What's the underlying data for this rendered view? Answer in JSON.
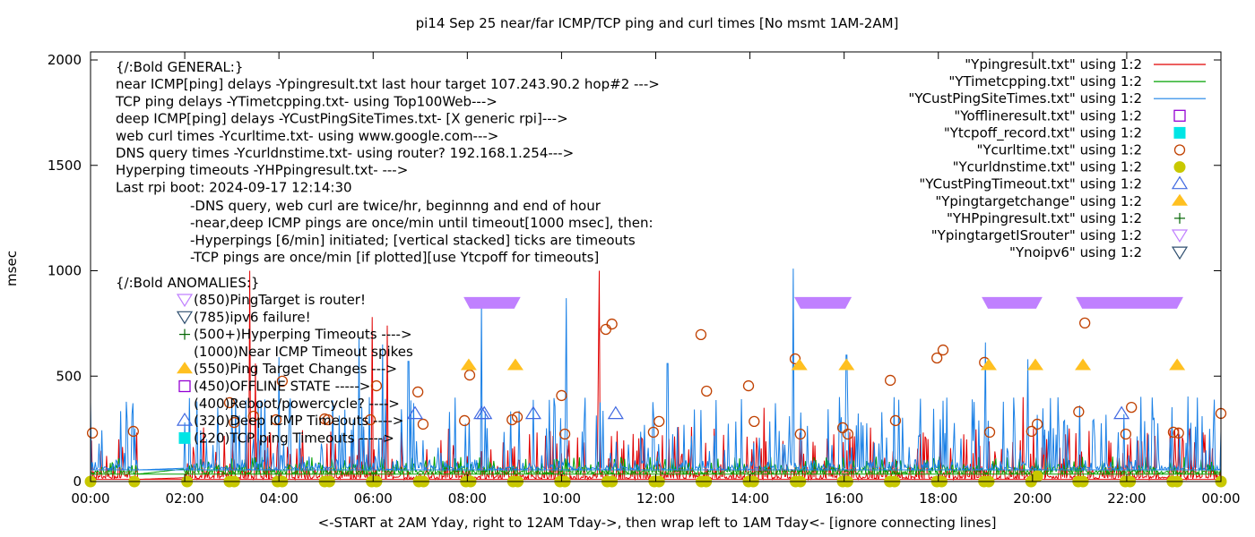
{
  "chart_data": {
    "type": "line",
    "title": "pi14 Sep 25  near/far ICMP/TCP ping and curl times [No msmt 1AM-2AM]",
    "xlabel": "<-START at 2AM Yday, right to 12AM Tday->, then wrap left to 1AM Tday<- [ignore connecting lines]",
    "ylabel": "msec",
    "xlim_hours": [
      0,
      24
    ],
    "ylim": [
      0,
      2000
    ],
    "x_ticks": [
      "00:00",
      "02:00",
      "04:00",
      "06:00",
      "08:00",
      "10:00",
      "12:00",
      "14:00",
      "16:00",
      "18:00",
      "20:00",
      "22:00",
      "00:00"
    ],
    "x_tick_hours": [
      0,
      2,
      4,
      6,
      8,
      10,
      12,
      14,
      16,
      18,
      20,
      22,
      24
    ],
    "y_ticks": [
      0,
      500,
      1000,
      1500,
      2000
    ],
    "grid": false,
    "legend_placement": "top-right",
    "annotations_general": [
      "{/:Bold GENERAL:}",
      "near ICMP[ping] delays -Ypingresult.txt last hour target 107.243.90.2 hop#2 --->",
      "TCP ping delays -YTimetcpping.txt- using Top100Web--->",
      "deep ICMP[ping] delays -YCustPingSiteTimes.txt- [X generic rpi]--->",
      "web curl times -Ycurltime.txt- using www.google.com--->",
      "DNS query times -Ycurldnstime.txt- using router? 192.168.1.254--->",
      "Hyperping timeouts -YHPpingresult.txt- --->",
      "Last rpi boot: 2024-09-17 12:14:30"
    ],
    "annotations_notes": [
      "-DNS query, web curl are twice/hr, beginnng and end of hour",
      "-near,deep ICMP pings are once/min until timeout[1000 msec], then:",
      "  -Hyperpings [6/min] initiated; [vertical stacked] ticks are timeouts",
      "-TCP pings are once/min [if plotted][use Ytcpoff for timeouts]"
    ],
    "anomalies_title": "{/:Bold ANOMALIES:}",
    "anomalies": [
      {
        "marker": "tri-down-violet",
        "text": "(850)PingTarget is router!"
      },
      {
        "marker": "tri-down-slate",
        "text": "(785)ipv6 failure!"
      },
      {
        "marker": "plus-green",
        "text": "(500+)Hyperping Timeouts ---->"
      },
      {
        "marker": "none",
        "text": "(1000)Near ICMP Timeout spikes"
      },
      {
        "marker": "tri-up-filled-orange",
        "text": "(550)Ping Target Changes --->"
      },
      {
        "marker": "square-open-purple",
        "text": "(450)OFFLINE STATE ----->"
      },
      {
        "marker": "none",
        "text": "(400)Reboot/powercycle? ---->"
      },
      {
        "marker": "tri-up-open-blue",
        "text": "(320)Deep ICMP Timeouts ---->"
      },
      {
        "marker": "square-filled-cyan",
        "text": "(220)TCP ping Timeouts ----->"
      }
    ],
    "legend": [
      {
        "label": "\"Ypingresult.txt\" using 1:2",
        "style": "line",
        "color": "#e00000"
      },
      {
        "label": "\"YTimetcpping.txt\" using 1:2",
        "style": "line",
        "color": "#00a000"
      },
      {
        "label": "\"YCustPingSiteTimes.txt\" using 1:2",
        "style": "line",
        "color": "#1a80e6"
      },
      {
        "label": "\"Yofflineresult.txt\" using 1:2",
        "style": "square-open",
        "color": "#9400d3"
      },
      {
        "label": "\"Ytcpoff_record.txt\" using 1:2",
        "style": "square-filled",
        "color": "#00e5e5"
      },
      {
        "label": "\"Ycurltime.txt\" using 1:2",
        "style": "circle-open",
        "color": "#c04000"
      },
      {
        "label": "\"Ycurldnstime.txt\" using 1:2",
        "style": "circle-filled",
        "color": "#c8c800"
      },
      {
        "label": "\"YCustPingTimeout.txt\" using 1:2",
        "style": "tri-up-open",
        "color": "#4169e1"
      },
      {
        "label": "\"Ypingtargetchange\" using 1:2",
        "style": "tri-up-filled",
        "color": "#ffc020"
      },
      {
        "label": "\"YHPpingresult.txt\" using 1:2",
        "style": "plus",
        "color": "#006400"
      },
      {
        "label": "\"YpingtargetISrouter\" using 1:2",
        "style": "tri-down-open",
        "color": "#c080ff"
      },
      {
        "label": "\"Ynoipv6\" using 1:2",
        "style": "tri-down-open",
        "color": "#2f4f6f"
      }
    ],
    "series": [
      {
        "name": "Ypingresult.txt",
        "kind": "noisy-line",
        "color": "#e00000",
        "baseline_msec": 10,
        "gap_hours": [
          1.0,
          2.0
        ],
        "typical_spike_msec": [
          50,
          250
        ],
        "large_spikes": [
          [
            3.38,
            1000
          ],
          [
            3.5,
            560
          ],
          [
            5.98,
            780
          ],
          [
            6.3,
            740
          ],
          [
            10.8,
            1000
          ],
          [
            10.78,
            520
          ],
          [
            14.3,
            350
          ],
          [
            19.8,
            400
          ]
        ]
      },
      {
        "name": "YTimetcpping.txt",
        "kind": "noisy-line",
        "color": "#00a000",
        "baseline_msec": 35,
        "gap_hours": [
          1.0,
          2.0
        ],
        "typical_spike_msec": [
          20,
          110
        ]
      },
      {
        "name": "YCustPingSiteTimes.txt",
        "kind": "noisy-line",
        "color": "#1a80e6",
        "baseline_msec": 55,
        "gap_hours": [
          1.0,
          2.0
        ],
        "typical_spike_msec": [
          60,
          350
        ],
        "large_spikes": [
          [
            4.0,
            590
          ],
          [
            5.7,
            680
          ],
          [
            6.2,
            650
          ],
          [
            6.75,
            570
          ],
          [
            8.3,
            860
          ],
          [
            10.1,
            870
          ],
          [
            12.25,
            560
          ],
          [
            14.92,
            1010
          ],
          [
            16.05,
            600
          ],
          [
            19.0,
            660
          ],
          [
            19.9,
            580
          ]
        ]
      },
      {
        "name": "Ycurltime.txt",
        "kind": "scatter",
        "marker": "circle-open",
        "color": "#c04000",
        "points": [
          [
            0.04,
            230
          ],
          [
            0.91,
            238
          ],
          [
            2.95,
            374
          ],
          [
            3.05,
            280
          ],
          [
            3.46,
            310
          ],
          [
            3.94,
            293
          ],
          [
            4.07,
            476
          ],
          [
            4.97,
            297
          ],
          [
            5.04,
            293
          ],
          [
            5.94,
            293
          ],
          [
            6.07,
            454
          ],
          [
            6.95,
            425
          ],
          [
            7.06,
            272
          ],
          [
            7.94,
            289
          ],
          [
            8.05,
            505
          ],
          [
            8.95,
            293
          ],
          [
            9.06,
            306
          ],
          [
            10.0,
            408
          ],
          [
            10.07,
            225
          ],
          [
            10.94,
            722
          ],
          [
            11.07,
            747
          ],
          [
            11.95,
            234
          ],
          [
            12.07,
            285
          ],
          [
            12.96,
            697
          ],
          [
            13.08,
            429
          ],
          [
            13.97,
            454
          ],
          [
            14.09,
            285
          ],
          [
            14.96,
            582
          ],
          [
            15.07,
            225
          ],
          [
            15.97,
            255
          ],
          [
            16.08,
            225
          ],
          [
            16.98,
            480
          ],
          [
            17.09,
            289
          ],
          [
            17.97,
            586
          ],
          [
            18.1,
            624
          ],
          [
            18.98,
            565
          ],
          [
            19.09,
            234
          ],
          [
            19.98,
            238
          ],
          [
            20.1,
            272
          ],
          [
            20.98,
            331
          ],
          [
            21.11,
            752
          ],
          [
            21.98,
            225
          ],
          [
            22.1,
            352
          ],
          [
            22.99,
            234
          ],
          [
            23.1,
            230
          ],
          [
            24.0,
            323
          ]
        ]
      },
      {
        "name": "Ycurldnstime.txt",
        "kind": "scatter",
        "marker": "circle-filled",
        "color": "#c8c800",
        "points": [
          [
            0.0,
            0
          ],
          [
            0.93,
            0
          ],
          [
            2.05,
            0
          ],
          [
            2.95,
            0
          ],
          [
            3.05,
            0
          ],
          [
            3.97,
            0
          ],
          [
            4.07,
            0
          ],
          [
            4.97,
            0
          ],
          [
            5.07,
            0
          ],
          [
            5.97,
            0
          ],
          [
            6.07,
            0
          ],
          [
            6.97,
            0
          ],
          [
            7.07,
            0
          ],
          [
            7.97,
            0
          ],
          [
            8.07,
            0
          ],
          [
            8.97,
            0
          ],
          [
            9.07,
            0
          ],
          [
            9.97,
            0
          ],
          [
            10.07,
            0
          ],
          [
            10.97,
            0
          ],
          [
            11.07,
            0
          ],
          [
            11.97,
            0
          ],
          [
            12.07,
            0
          ],
          [
            12.97,
            0
          ],
          [
            13.07,
            0
          ],
          [
            13.97,
            0
          ],
          [
            14.07,
            0
          ],
          [
            14.97,
            0
          ],
          [
            15.07,
            0
          ],
          [
            15.97,
            0
          ],
          [
            16.07,
            0
          ],
          [
            16.97,
            0
          ],
          [
            17.07,
            0
          ],
          [
            17.97,
            0
          ],
          [
            18.07,
            0
          ],
          [
            18.97,
            0
          ],
          [
            19.07,
            0
          ],
          [
            19.97,
            0
          ],
          [
            20.1,
            25
          ],
          [
            20.97,
            0
          ],
          [
            21.07,
            0
          ],
          [
            21.97,
            0
          ],
          [
            22.07,
            0
          ],
          [
            22.97,
            0
          ],
          [
            23.07,
            0
          ],
          [
            24.0,
            0
          ]
        ]
      },
      {
        "name": "YCustPingTimeout.txt",
        "kind": "scatter",
        "marker": "tri-up-open",
        "color": "#4169e1",
        "points": [
          [
            6.89,
            320
          ],
          [
            8.3,
            320
          ],
          [
            8.36,
            320
          ],
          [
            9.4,
            320
          ],
          [
            11.15,
            320
          ],
          [
            21.89,
            320
          ]
        ]
      },
      {
        "name": "Ypingtargetchange",
        "kind": "scatter",
        "marker": "tri-up-filled",
        "color": "#ffc020",
        "points": [
          [
            8.03,
            550
          ],
          [
            9.02,
            550
          ],
          [
            15.05,
            550
          ],
          [
            16.05,
            550
          ],
          [
            19.07,
            550
          ],
          [
            20.06,
            550
          ],
          [
            21.07,
            550
          ],
          [
            23.07,
            550
          ]
        ]
      },
      {
        "name": "YpingtargetISrouter",
        "kind": "band",
        "marker": "tri-down-filled",
        "color": "#c080ff",
        "y": 850,
        "ranges_hours": [
          [
            7.92,
            9.13
          ],
          [
            14.94,
            16.16
          ],
          [
            18.92,
            20.21
          ],
          [
            20.92,
            23.2
          ]
        ]
      }
    ]
  }
}
